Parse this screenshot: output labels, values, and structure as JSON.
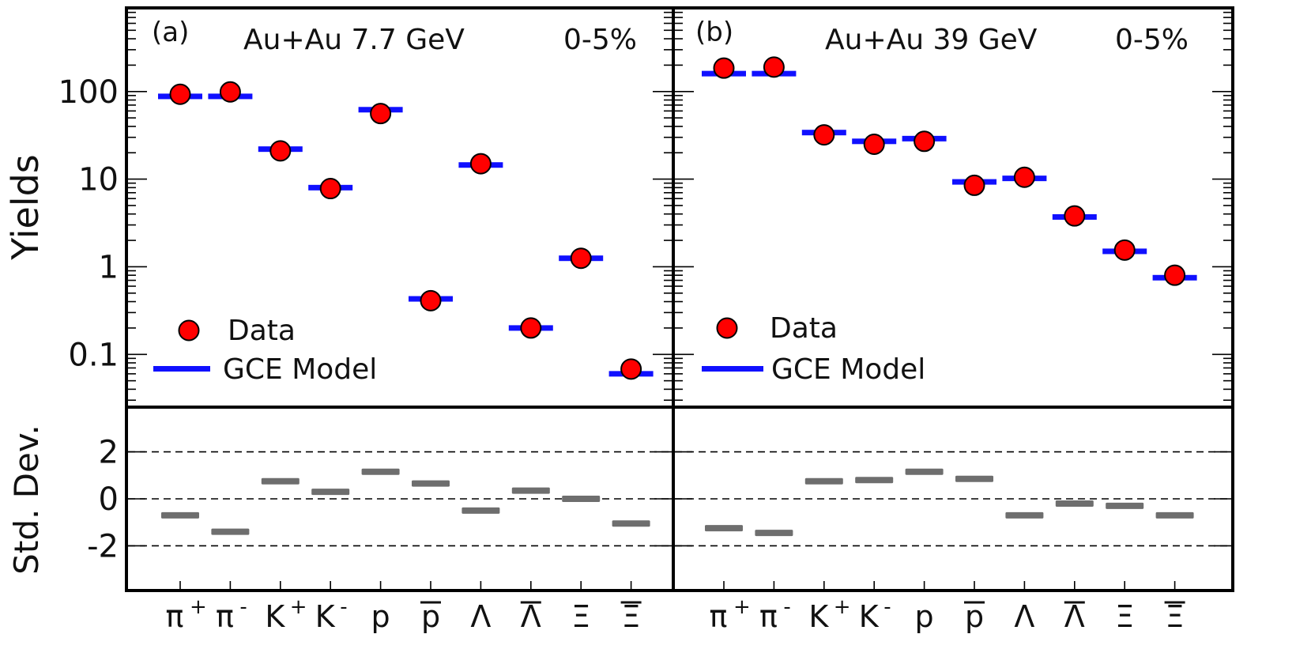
{
  "figure": {
    "ylabel_top": "Yields",
    "ylabel_bottom": "Std. Dev."
  },
  "chart_data": [
    {
      "type": "scatter",
      "panel": "(a)",
      "system": "Au+Au 7.7 GeV",
      "centrality": "0-5%",
      "yscale": "log",
      "ylim": [
        0.025,
        900
      ],
      "yticks": [
        {
          "v": 0.1,
          "label": "0.1"
        },
        {
          "v": 1,
          "label": "1"
        },
        {
          "v": 10,
          "label": "10"
        },
        {
          "v": 100,
          "label": "100"
        }
      ],
      "categories": [
        "π+",
        "π-",
        "K+",
        "K-",
        "p",
        "p̄",
        "Λ",
        "Λ̄",
        "Ξ",
        "Ξ̄"
      ],
      "series": [
        {
          "name": "Data",
          "marker": "circle",
          "color": "#ff0000",
          "values": [
            93,
            99,
            21,
            7.8,
            56,
            0.41,
            15,
            0.2,
            1.25,
            0.068
          ]
        },
        {
          "name": "GCE Model",
          "marker": "hline",
          "color": "#1010ff",
          "values": [
            88,
            88,
            22,
            8.0,
            62,
            0.43,
            14.5,
            0.2,
            1.25,
            0.06
          ]
        }
      ],
      "legend": {
        "position": "bottom-left",
        "entries": [
          "Data",
          "GCE Model"
        ]
      }
    },
    {
      "type": "scatter",
      "panel": "(b)",
      "system": "Au+Au 39 GeV",
      "centrality": "0-5%",
      "yscale": "log",
      "ylim": [
        0.025,
        900
      ],
      "yticks": [
        {
          "v": 0.1,
          "label": "0.1"
        },
        {
          "v": 1,
          "label": "1"
        },
        {
          "v": 10,
          "label": "10"
        },
        {
          "v": 100,
          "label": "100"
        }
      ],
      "categories": [
        "π+",
        "π-",
        "K+",
        "K-",
        "p",
        "p̄",
        "Λ",
        "Λ̄",
        "Ξ",
        "Ξ̄"
      ],
      "series": [
        {
          "name": "Data",
          "marker": "circle",
          "color": "#ff0000",
          "values": [
            185,
            190,
            32,
            25,
            27,
            8.5,
            10.5,
            3.8,
            1.55,
            0.8
          ]
        },
        {
          "name": "GCE Model",
          "marker": "hline",
          "color": "#1010ff",
          "values": [
            160,
            160,
            34,
            27,
            29,
            9.3,
            10.2,
            3.7,
            1.5,
            0.75
          ]
        }
      ],
      "legend": {
        "position": "bottom-left",
        "entries": [
          "Data",
          "GCE Model"
        ]
      }
    },
    {
      "type": "scatter",
      "panel": "(a) residuals",
      "ylabel": "Std. Dev.",
      "ylim": [
        -3.9,
        3.9
      ],
      "yticks": [
        {
          "v": -2,
          "label": "-2"
        },
        {
          "v": 0,
          "label": "0"
        },
        {
          "v": 2,
          "label": "2"
        }
      ],
      "reference_lines": [
        -2,
        0,
        2
      ],
      "categories": [
        "π+",
        "π-",
        "K+",
        "K-",
        "p",
        "p̄",
        "Λ",
        "Λ̄",
        "Ξ",
        "Ξ̄"
      ],
      "series": [
        {
          "name": "Std. Dev.",
          "marker": "hline",
          "color": "#6e6e6e",
          "values": [
            -0.7,
            -1.4,
            0.75,
            0.3,
            1.15,
            0.65,
            -0.5,
            0.35,
            0.0,
            -1.05
          ]
        }
      ]
    },
    {
      "type": "scatter",
      "panel": "(b) residuals",
      "ylim": [
        -3.9,
        3.9
      ],
      "yticks": [
        {
          "v": -2,
          "label": "-2"
        },
        {
          "v": 0,
          "label": "0"
        },
        {
          "v": 2,
          "label": "2"
        }
      ],
      "reference_lines": [
        -2,
        0,
        2
      ],
      "categories": [
        "π+",
        "π-",
        "K+",
        "K-",
        "p",
        "p̄",
        "Λ",
        "Λ̄",
        "Ξ",
        "Ξ̄"
      ],
      "series": [
        {
          "name": "Std. Dev.",
          "marker": "hline",
          "color": "#6e6e6e",
          "values": [
            -1.25,
            -1.45,
            0.75,
            0.8,
            1.15,
            0.85,
            -0.7,
            -0.2,
            -0.3,
            -0.7
          ]
        }
      ]
    }
  ]
}
